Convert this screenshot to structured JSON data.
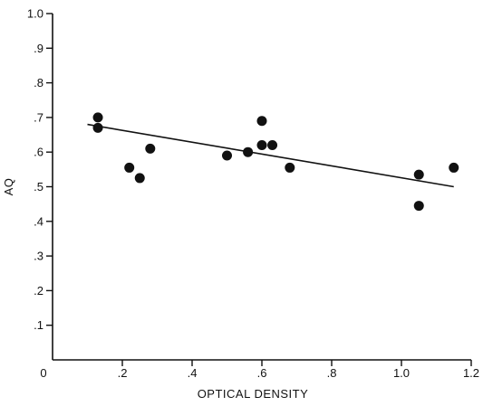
{
  "chart_data": {
    "type": "scatter",
    "title": "",
    "xlabel": "OPTICAL DENSITY",
    "ylabel": "AQ",
    "xlim": [
      0,
      1.2
    ],
    "ylim": [
      0,
      1.0
    ],
    "x_ticks": [
      0,
      0.2,
      0.4,
      0.6,
      0.8,
      1.0,
      1.2
    ],
    "x_tick_labels": [
      "0",
      ".2",
      ".4",
      ".6",
      ".8",
      "1.0",
      "1.2"
    ],
    "y_ticks": [
      0.1,
      0.2,
      0.3,
      0.4,
      0.5,
      0.6,
      0.7,
      0.8,
      0.9,
      1.0
    ],
    "y_tick_labels": [
      ".1",
      ".2",
      ".3",
      ".4",
      ".5",
      ".6",
      ".7",
      ".8",
      ".9",
      "1.0"
    ],
    "grid": false,
    "points": [
      {
        "x": 0.13,
        "y": 0.7
      },
      {
        "x": 0.13,
        "y": 0.67
      },
      {
        "x": 0.22,
        "y": 0.555
      },
      {
        "x": 0.25,
        "y": 0.525
      },
      {
        "x": 0.28,
        "y": 0.61
      },
      {
        "x": 0.5,
        "y": 0.59
      },
      {
        "x": 0.56,
        "y": 0.6
      },
      {
        "x": 0.6,
        "y": 0.69
      },
      {
        "x": 0.6,
        "y": 0.62
      },
      {
        "x": 0.63,
        "y": 0.62
      },
      {
        "x": 0.68,
        "y": 0.555
      },
      {
        "x": 1.05,
        "y": 0.535
      },
      {
        "x": 1.05,
        "y": 0.445
      },
      {
        "x": 1.15,
        "y": 0.555
      }
    ],
    "trend_line": {
      "x": [
        0.1,
        1.15
      ],
      "y": [
        0.68,
        0.5
      ]
    }
  }
}
